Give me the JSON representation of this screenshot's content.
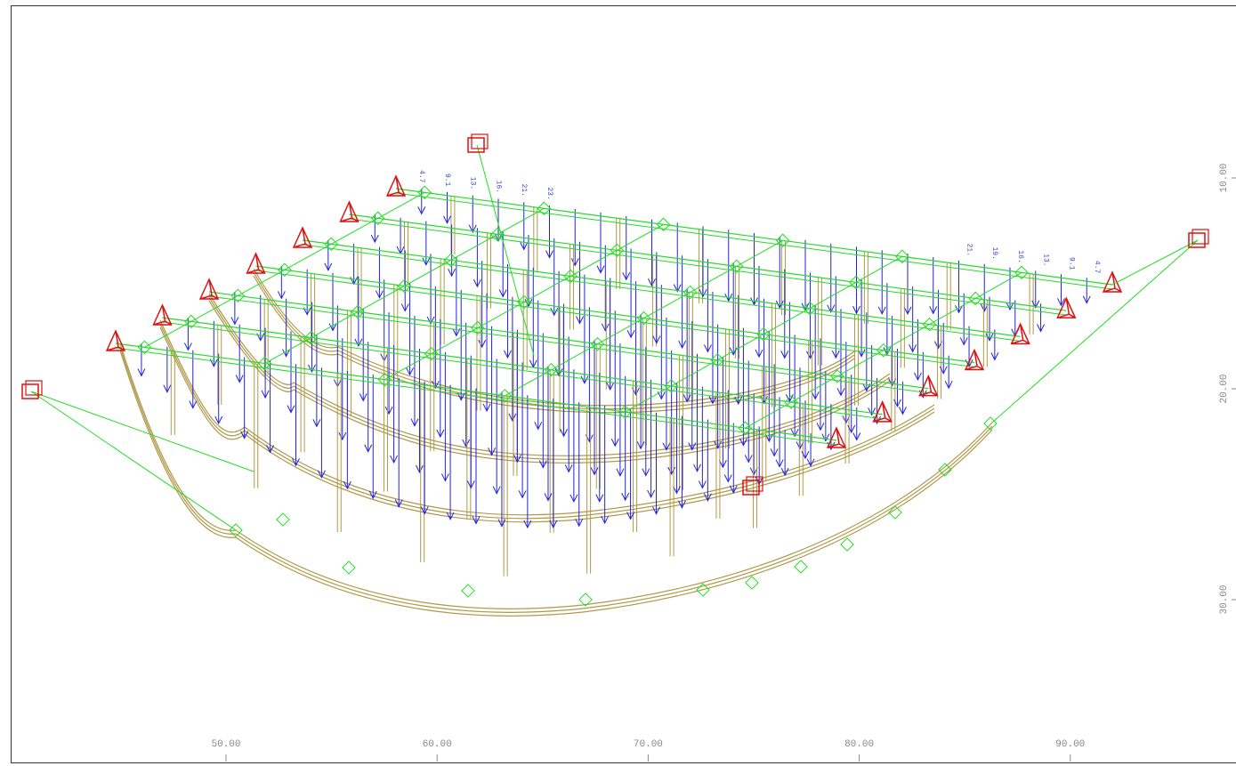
{
  "viewport": {
    "x_ticks": [
      {
        "value": 50,
        "label": "50.00"
      },
      {
        "value": 60,
        "label": "60.00"
      },
      {
        "value": 70,
        "label": "70.00"
      },
      {
        "value": 80,
        "label": "80.00"
      },
      {
        "value": 90,
        "label": "90.00"
      }
    ],
    "y_ticks": [
      {
        "value": 10,
        "label": "10.00"
      },
      {
        "value": 20,
        "label": "20.00"
      },
      {
        "value": 30,
        "label": "30.00"
      }
    ],
    "load_labels_left": [
      "4.7",
      "9.1",
      "13.",
      "16.",
      "21.",
      "23."
    ],
    "load_labels_right": [
      "21.",
      "19.",
      "16.",
      "13.",
      "9.1",
      "4.7"
    ]
  }
}
